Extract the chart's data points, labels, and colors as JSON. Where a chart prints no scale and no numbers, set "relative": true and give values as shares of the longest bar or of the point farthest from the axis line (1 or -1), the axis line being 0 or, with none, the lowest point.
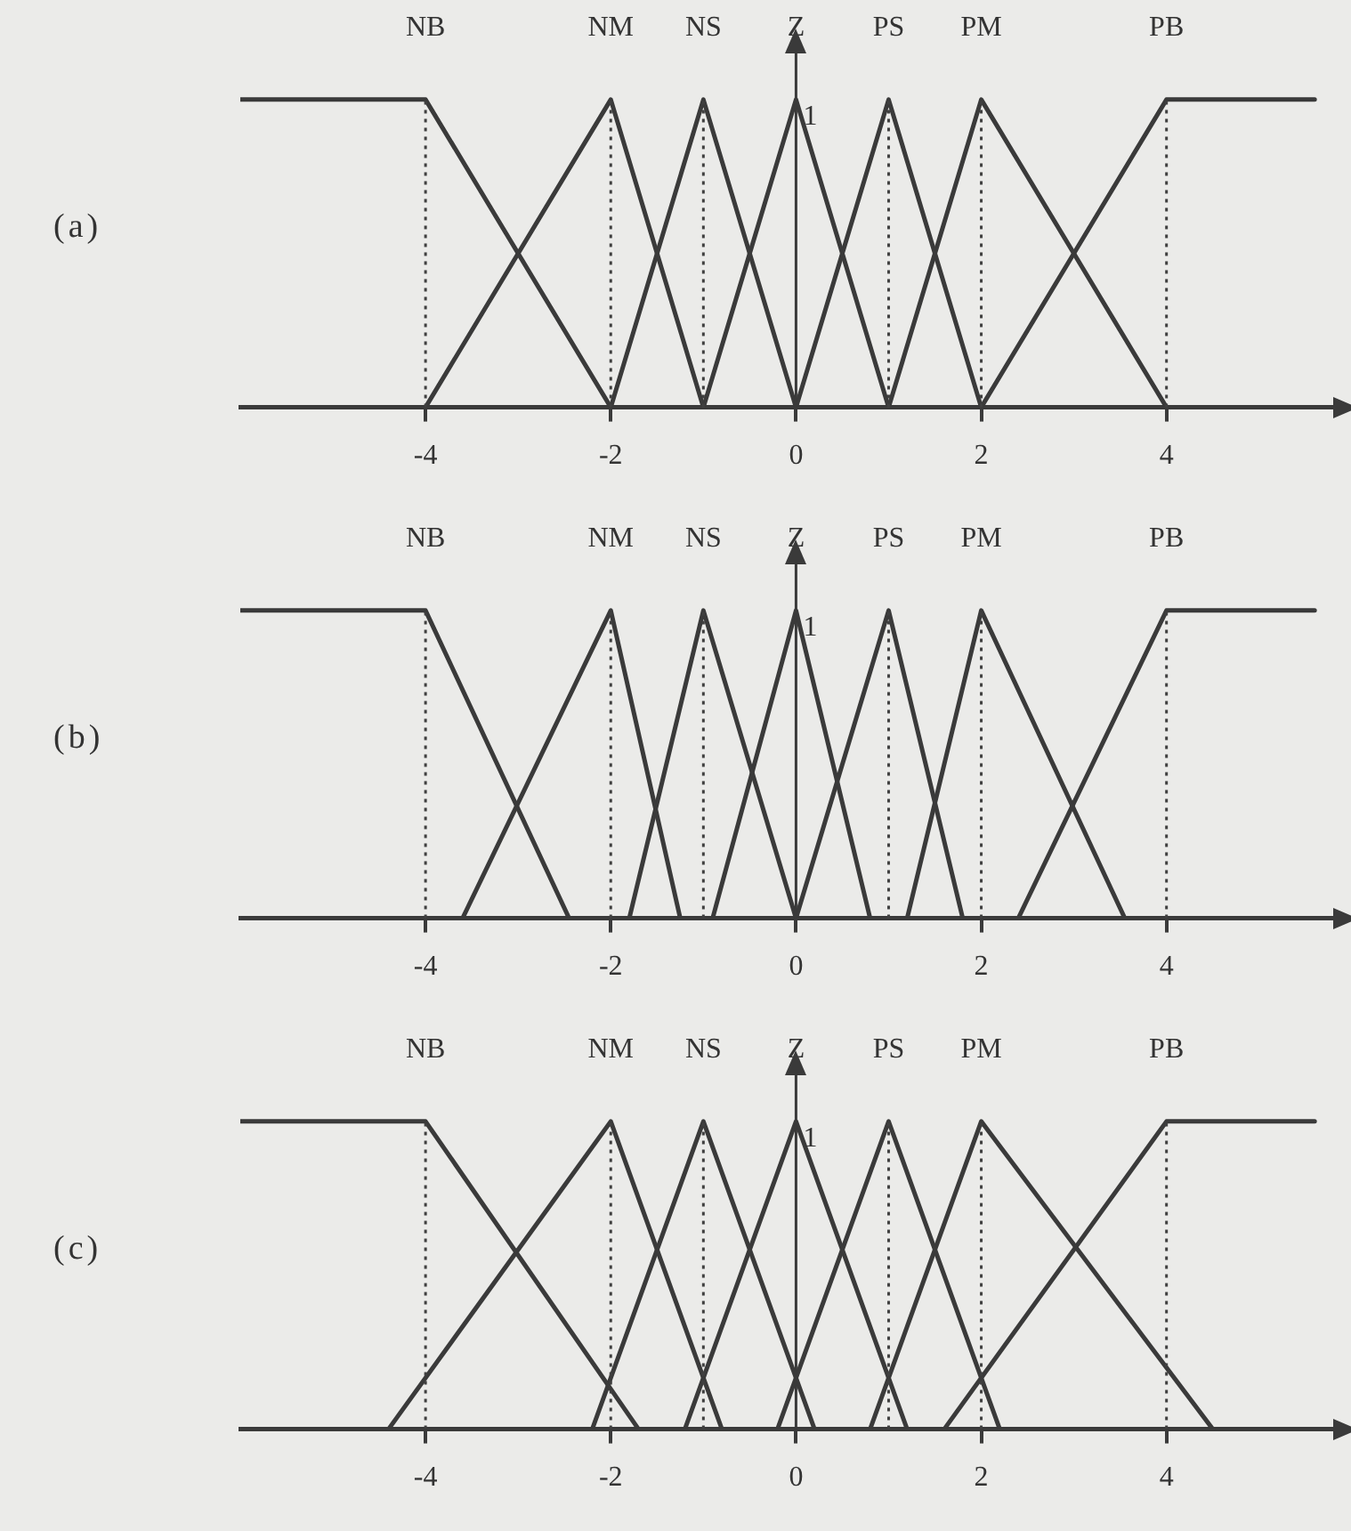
{
  "chart_data": [
    {
      "type": "line",
      "title": "(a)",
      "relative": true,
      "xlim": [
        -6,
        5.8
      ],
      "xticks": [
        -4,
        -2,
        0,
        2,
        4
      ],
      "grid": false,
      "legend": "top",
      "marker": "none",
      "line_style": "solid",
      "annotations": [
        "1"
      ],
      "ref_lines": [
        {
          "axis": "x",
          "value": -4,
          "color": "#404040",
          "line_style": "dotted"
        },
        {
          "axis": "x",
          "value": -2,
          "color": "#404040",
          "line_style": "dotted"
        },
        {
          "axis": "x",
          "value": -1,
          "color": "#404040",
          "line_style": "dotted"
        },
        {
          "axis": "x",
          "value": 1,
          "color": "#404040",
          "line_style": "dotted"
        },
        {
          "axis": "x",
          "value": 2,
          "color": "#404040",
          "line_style": "dotted"
        },
        {
          "axis": "x",
          "value": 4,
          "color": "#404040",
          "line_style": "dotted"
        }
      ],
      "series": [
        {
          "name": "NB",
          "color": "#3a3a3a",
          "x": [
            -6,
            -4,
            -2
          ],
          "values": [
            1,
            1,
            0
          ]
        },
        {
          "name": "NM",
          "color": "#3a3a3a",
          "x": [
            -4,
            -2,
            -1
          ],
          "values": [
            0,
            1,
            0
          ]
        },
        {
          "name": "NS",
          "color": "#3a3a3a",
          "x": [
            -2,
            -1,
            0
          ],
          "values": [
            0,
            1,
            0
          ]
        },
        {
          "name": "Z",
          "color": "#3a3a3a",
          "x": [
            -1,
            0,
            1
          ],
          "values": [
            0,
            1,
            0
          ]
        },
        {
          "name": "PS",
          "color": "#3a3a3a",
          "x": [
            0,
            1,
            2
          ],
          "values": [
            0,
            1,
            0
          ]
        },
        {
          "name": "PM",
          "color": "#3a3a3a",
          "x": [
            1,
            2,
            4
          ],
          "values": [
            0,
            1,
            0
          ]
        },
        {
          "name": "PB",
          "color": "#3a3a3a",
          "x": [
            2,
            4,
            5.6
          ],
          "values": [
            0,
            1,
            1
          ]
        }
      ]
    },
    {
      "type": "line",
      "title": "(b)",
      "relative": true,
      "xlim": [
        -6,
        5.8
      ],
      "xticks": [
        -4,
        -2,
        0,
        2,
        4
      ],
      "grid": false,
      "legend": "top",
      "marker": "none",
      "line_style": "solid",
      "annotations": [
        "1"
      ],
      "ref_lines": [
        {
          "axis": "x",
          "value": -4,
          "color": "#404040",
          "line_style": "dotted"
        },
        {
          "axis": "x",
          "value": -2,
          "color": "#404040",
          "line_style": "dotted"
        },
        {
          "axis": "x",
          "value": -1,
          "color": "#404040",
          "line_style": "dotted"
        },
        {
          "axis": "x",
          "value": 1,
          "color": "#404040",
          "line_style": "dotted"
        },
        {
          "axis": "x",
          "value": 2,
          "color": "#404040",
          "line_style": "dotted"
        },
        {
          "axis": "x",
          "value": 4,
          "color": "#404040",
          "line_style": "dotted"
        }
      ],
      "series": [
        {
          "name": "NB",
          "color": "#3a3a3a",
          "x": [
            -6,
            -4,
            -2.45
          ],
          "values": [
            1,
            1,
            0
          ]
        },
        {
          "name": "NM",
          "color": "#3a3a3a",
          "x": [
            -3.6,
            -2,
            -1.25
          ],
          "values": [
            0,
            1,
            0
          ]
        },
        {
          "name": "NS",
          "color": "#3a3a3a",
          "x": [
            -1.8,
            -1,
            0
          ],
          "values": [
            0,
            1,
            0
          ]
        },
        {
          "name": "Z",
          "color": "#3a3a3a",
          "x": [
            -0.9,
            0,
            0.8
          ],
          "values": [
            0,
            1,
            0
          ]
        },
        {
          "name": "PS",
          "color": "#3a3a3a",
          "x": [
            0,
            1,
            1.8
          ],
          "values": [
            0,
            1,
            0
          ]
        },
        {
          "name": "PM",
          "color": "#3a3a3a",
          "x": [
            1.2,
            2,
            3.55
          ],
          "values": [
            0,
            1,
            0
          ]
        },
        {
          "name": "PB",
          "color": "#3a3a3a",
          "x": [
            2.4,
            4,
            5.6
          ],
          "values": [
            0,
            1,
            1
          ]
        }
      ]
    },
    {
      "type": "line",
      "title": "(c)",
      "relative": true,
      "xlim": [
        -6,
        5.8
      ],
      "xticks": [
        -4,
        -2,
        0,
        2,
        4
      ],
      "grid": false,
      "legend": "top",
      "marker": "none",
      "line_style": "solid",
      "annotations": [
        "1"
      ],
      "ref_lines": [
        {
          "axis": "x",
          "value": -4,
          "color": "#404040",
          "line_style": "dotted"
        },
        {
          "axis": "x",
          "value": -2,
          "color": "#404040",
          "line_style": "dotted"
        },
        {
          "axis": "x",
          "value": -1,
          "color": "#404040",
          "line_style": "dotted"
        },
        {
          "axis": "x",
          "value": 1,
          "color": "#404040",
          "line_style": "dotted"
        },
        {
          "axis": "x",
          "value": 2,
          "color": "#404040",
          "line_style": "dotted"
        },
        {
          "axis": "x",
          "value": 4,
          "color": "#404040",
          "line_style": "dotted"
        }
      ],
      "series": [
        {
          "name": "NB",
          "color": "#3a3a3a",
          "x": [
            -6,
            -4,
            -1.7
          ],
          "values": [
            1,
            1,
            0
          ]
        },
        {
          "name": "NM",
          "color": "#3a3a3a",
          "x": [
            -4.4,
            -2,
            -0.8
          ],
          "values": [
            0,
            1,
            0
          ]
        },
        {
          "name": "NS",
          "color": "#3a3a3a",
          "x": [
            -2.2,
            -1,
            0.2
          ],
          "values": [
            0,
            1,
            0
          ]
        },
        {
          "name": "Z",
          "color": "#3a3a3a",
          "x": [
            -1.2,
            0,
            1.2
          ],
          "values": [
            0,
            1,
            0
          ]
        },
        {
          "name": "PS",
          "color": "#3a3a3a",
          "x": [
            -0.2,
            1,
            2.2
          ],
          "values": [
            0,
            1,
            0
          ]
        },
        {
          "name": "PM",
          "color": "#3a3a3a",
          "x": [
            0.8,
            2,
            4.5
          ],
          "values": [
            0,
            1,
            0
          ]
        },
        {
          "name": "PB",
          "color": "#3a3a3a",
          "x": [
            1.6,
            4,
            5.6
          ],
          "values": [
            0,
            1,
            1
          ]
        }
      ]
    }
  ]
}
